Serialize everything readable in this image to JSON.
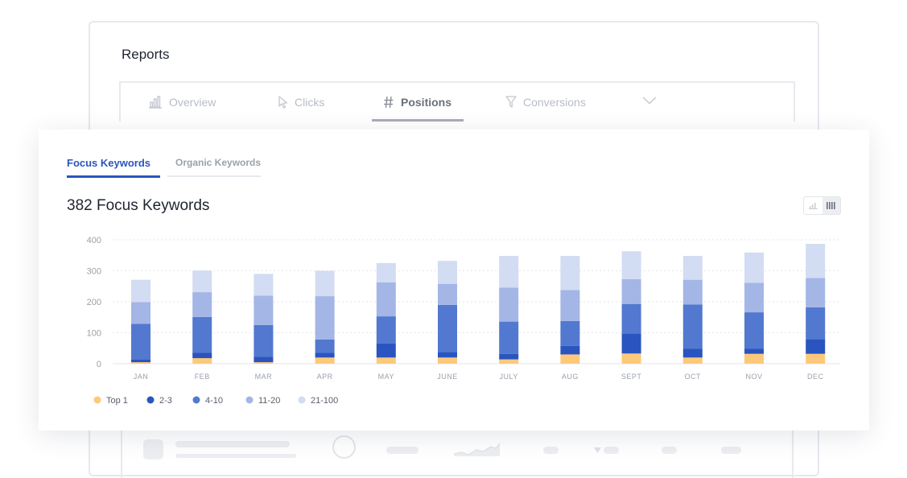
{
  "colors": {
    "accent_red": "#ff4b62",
    "top1": "#fcc97a",
    "r2_3": "#2a55c0",
    "r4_10": "#5279cf",
    "r11_20": "#a3b6e6",
    "r21_100": "#d2dcf2",
    "active_blue": "#2a55c0"
  },
  "background_panel": {
    "title": "Reports",
    "tabs": [
      {
        "label": "Overview",
        "icon": "bar-chart-icon"
      },
      {
        "label": "Clicks",
        "icon": "cursor-icon"
      },
      {
        "label": "Positions",
        "icon": "hash-icon"
      },
      {
        "label": "Conversions",
        "icon": "funnel-icon"
      }
    ],
    "more_icon": "chevron-down-icon",
    "active_tab": "Positions"
  },
  "card": {
    "tabs": [
      {
        "label": "Focus Keywords",
        "active": true
      },
      {
        "label": "Organic Keywords",
        "active": false
      }
    ],
    "heading": "382 Focus Keywords",
    "view_toggle": {
      "options": [
        "line-chart-icon",
        "bar-chart-icon"
      ],
      "selected": "bar-chart-icon"
    }
  },
  "chart_data": {
    "type": "bar",
    "stacked": true,
    "categories": [
      "JAN",
      "FEB",
      "MAR",
      "APR",
      "MAY",
      "JUNE",
      "JULY",
      "AUG",
      "SEPT",
      "OCT",
      "NOV",
      "DEC"
    ],
    "series": [
      {
        "name": "Top 1",
        "color": "#fcc97a",
        "values": [
          5,
          18,
          5,
          20,
          20,
          20,
          14,
          30,
          33,
          20,
          32,
          32
        ]
      },
      {
        "name": "2-3",
        "color": "#2a55c0",
        "values": [
          8,
          18,
          18,
          15,
          45,
          18,
          18,
          28,
          65,
          28,
          16,
          47
        ]
      },
      {
        "name": "4-10",
        "color": "#5279cf",
        "values": [
          116,
          115,
          102,
          43,
          88,
          152,
          104,
          80,
          95,
          143,
          118,
          103
        ]
      },
      {
        "name": "11-20",
        "color": "#a3b6e6",
        "values": [
          70,
          80,
          95,
          140,
          110,
          68,
          110,
          100,
          80,
          80,
          95,
          95
        ]
      },
      {
        "name": "21-100",
        "color": "#d2dcf2",
        "values": [
          72,
          70,
          70,
          82,
          62,
          74,
          102,
          110,
          90,
          77,
          98,
          110
        ]
      }
    ],
    "ylim": [
      0,
      400
    ],
    "yticks": [
      0,
      100,
      200,
      300,
      400
    ],
    "grid": true,
    "legend_position": "bottom-left",
    "xlabel": "",
    "ylabel": ""
  }
}
